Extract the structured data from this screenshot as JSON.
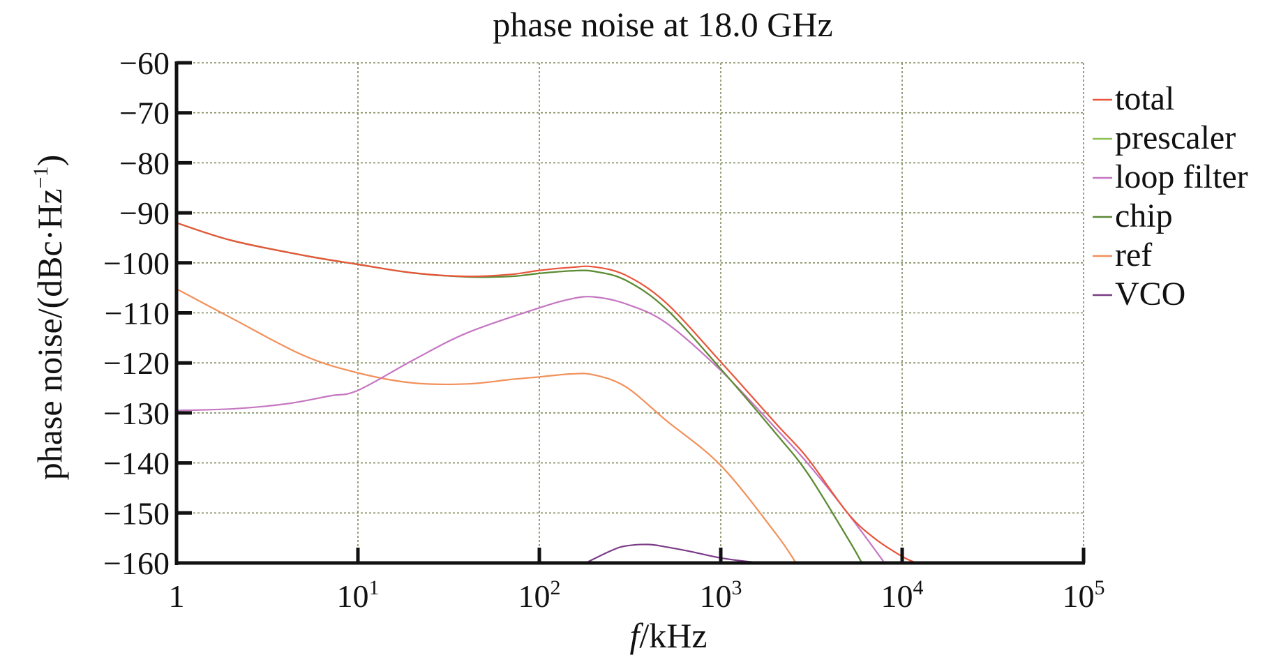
{
  "chart_data": {
    "type": "line",
    "title": "phase noise at 18.0 GHz",
    "xlabel": {
      "italic": "f",
      "rest": "/kHz"
    },
    "ylabel": {
      "main": "phase noise/(dBc·Hz",
      "sup": "−1",
      "close": ")"
    },
    "x_scale": "log",
    "xlim": [
      1,
      100000
    ],
    "ylim": [
      -160,
      -60
    ],
    "grid": true,
    "legend_position": "right",
    "x_ticks": [
      {
        "value": 1,
        "base": "1",
        "exp": ""
      },
      {
        "value": 10,
        "base": "10",
        "exp": "1"
      },
      {
        "value": 100,
        "base": "10",
        "exp": "2"
      },
      {
        "value": 1000,
        "base": "10",
        "exp": "3"
      },
      {
        "value": 10000,
        "base": "10",
        "exp": "4"
      },
      {
        "value": 100000,
        "base": "10",
        "exp": "5"
      }
    ],
    "y_ticks": [
      {
        "value": -60,
        "label": "−60"
      },
      {
        "value": -70,
        "label": "−70"
      },
      {
        "value": -80,
        "label": "−80"
      },
      {
        "value": -90,
        "label": "−90"
      },
      {
        "value": -100,
        "label": "−100"
      },
      {
        "value": -110,
        "label": "−110"
      },
      {
        "value": -120,
        "label": "−120"
      },
      {
        "value": -130,
        "label": "−130"
      },
      {
        "value": -140,
        "label": "−140"
      },
      {
        "value": -150,
        "label": "−150"
      },
      {
        "value": -160,
        "label": "−160"
      }
    ],
    "series": [
      {
        "name": "total",
        "color": "#e8553a",
        "x": [
          1,
          2,
          5,
          10,
          20,
          40,
          70,
          100,
          150,
          200,
          300,
          500,
          1000,
          2000,
          3000,
          5000,
          7000,
          10000,
          12000
        ],
        "y": [
          -92,
          -95.5,
          -98.5,
          -100.3,
          -102,
          -102.7,
          -102.3,
          -101.5,
          -100.9,
          -100.8,
          -102.5,
          -108,
          -119.8,
          -132,
          -139,
          -150,
          -155,
          -158.7,
          -160
        ]
      },
      {
        "name": "prescaler",
        "color": "#8cc152",
        "x": [
          1,
          2,
          5,
          10,
          20,
          40,
          70,
          100,
          150,
          200,
          300,
          500,
          1000,
          2000,
          3000,
          5000,
          6000
        ],
        "y": [
          -92,
          -95.5,
          -98.5,
          -100.3,
          -102,
          -102.8,
          -102.7,
          -102.1,
          -101.6,
          -101.7,
          -103.5,
          -109.2,
          -121.2,
          -134,
          -142,
          -155,
          -160
        ]
      },
      {
        "name": "loop filter",
        "color": "#c576c1",
        "x": [
          1,
          2,
          4,
          7,
          10,
          20,
          40,
          100,
          150,
          200,
          300,
          500,
          1000,
          2000,
          3000,
          5000,
          8000
        ],
        "y": [
          -129.5,
          -129.2,
          -128.2,
          -126.6,
          -125.5,
          -119.5,
          -114,
          -109,
          -107.2,
          -106.8,
          -108.2,
          -112,
          -121.5,
          -133,
          -140,
          -150,
          -160
        ]
      },
      {
        "name": "chip",
        "color": "#5c8a35",
        "x": [
          1,
          2,
          5,
          10,
          20,
          40,
          70,
          100,
          150,
          200,
          300,
          500,
          1000,
          2000,
          3000,
          5000,
          6000
        ],
        "y": [
          -92,
          -95.5,
          -98.5,
          -100.3,
          -102,
          -102.8,
          -102.7,
          -102.1,
          -101.6,
          -101.7,
          -103.5,
          -109.2,
          -121.2,
          -134,
          -142,
          -155,
          -160
        ]
      },
      {
        "name": "ref",
        "color": "#f2905a",
        "x": [
          1,
          2,
          5,
          10,
          20,
          40,
          70,
          100,
          150,
          200,
          300,
          500,
          1000,
          2000,
          2600
        ],
        "y": [
          -105.2,
          -111,
          -118.5,
          -122,
          -124,
          -124.2,
          -123.3,
          -122.8,
          -122.2,
          -122.4,
          -124.8,
          -131.5,
          -140.5,
          -154,
          -160
        ]
      },
      {
        "name": "VCO",
        "color": "#7a3c86",
        "x": [
          180,
          250,
          300,
          400,
          500,
          700,
          1000,
          1500,
          2000
        ],
        "y": [
          -160,
          -157.5,
          -156.6,
          -156.3,
          -156.8,
          -157.8,
          -159,
          -159.8,
          -160
        ]
      }
    ]
  }
}
